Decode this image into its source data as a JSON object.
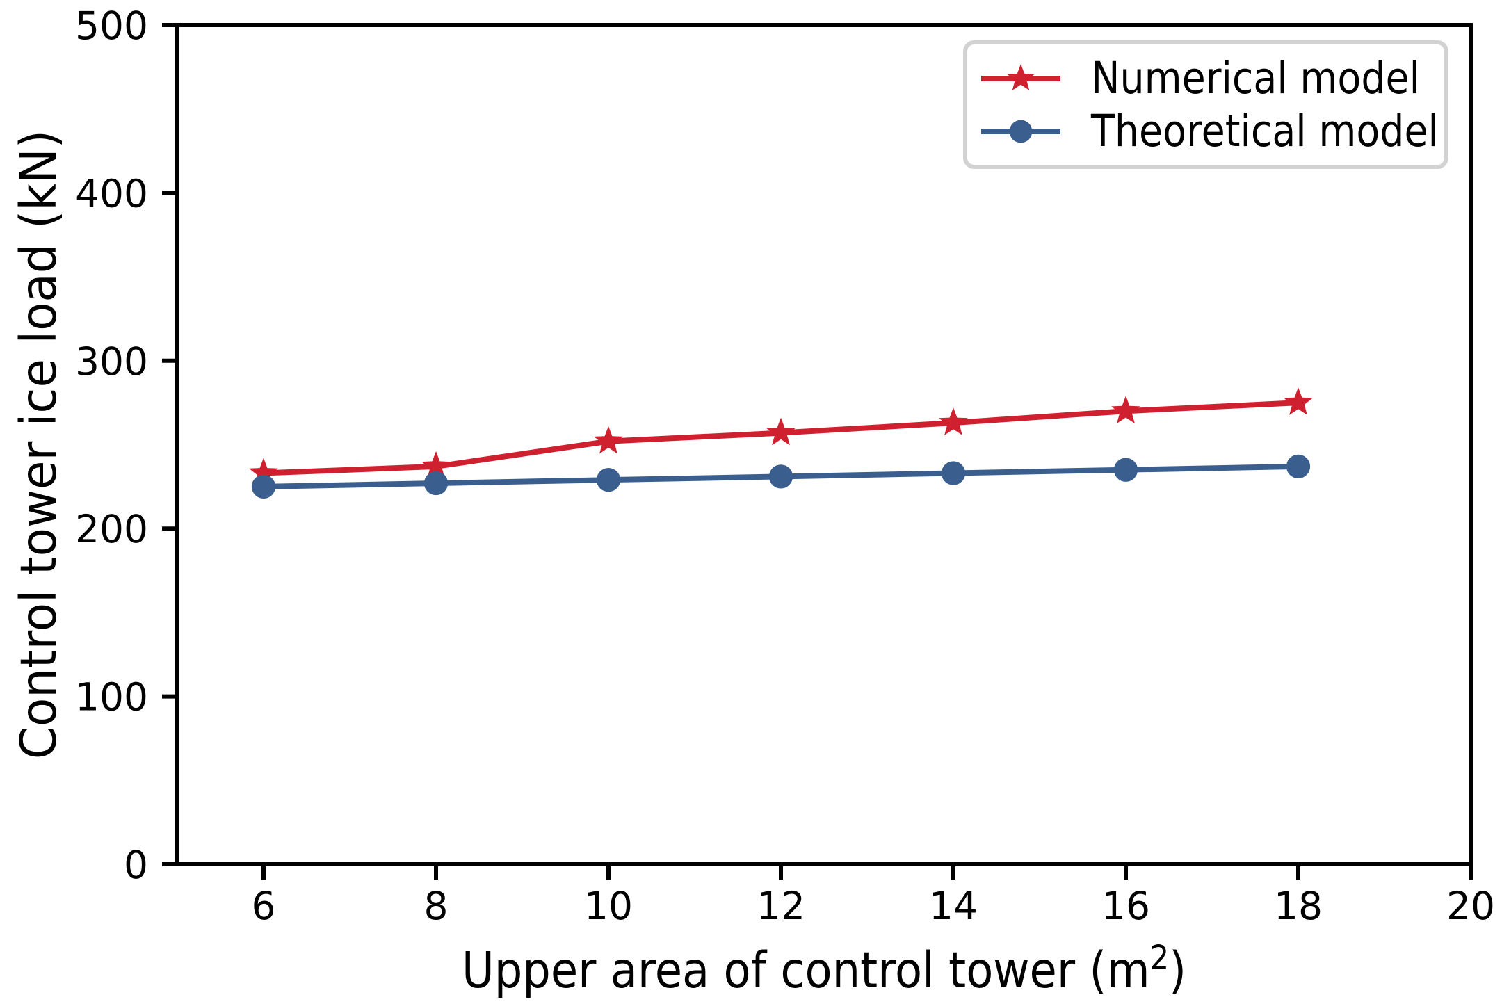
{
  "chart_data": {
    "type": "line",
    "title": "",
    "xlabel": "Upper area of control tower (m²)",
    "ylabel": "Control tower ice load (kN)",
    "x": [
      6,
      8,
      10,
      12,
      14,
      16,
      18
    ],
    "series": [
      {
        "name": "Numerical model",
        "marker": "star",
        "color": "#cf2030",
        "values": [
          233,
          237,
          252,
          257,
          263,
          270,
          275
        ]
      },
      {
        "name": "Theoretical model",
        "marker": "circle",
        "color": "#3a5f8e",
        "values": [
          225,
          227,
          229,
          231,
          233,
          235,
          237
        ]
      }
    ],
    "xlim": [
      5,
      20
    ],
    "ylim": [
      0,
      500
    ],
    "xticks": [
      6,
      8,
      10,
      12,
      14,
      16,
      18,
      20
    ],
    "yticks": [
      0,
      100,
      200,
      300,
      400,
      500
    ],
    "grid": false,
    "legend_position": "top-right",
    "axis_color": "#000000",
    "background": "#ffffff",
    "legend_border_color": "#d2d2d2"
  }
}
